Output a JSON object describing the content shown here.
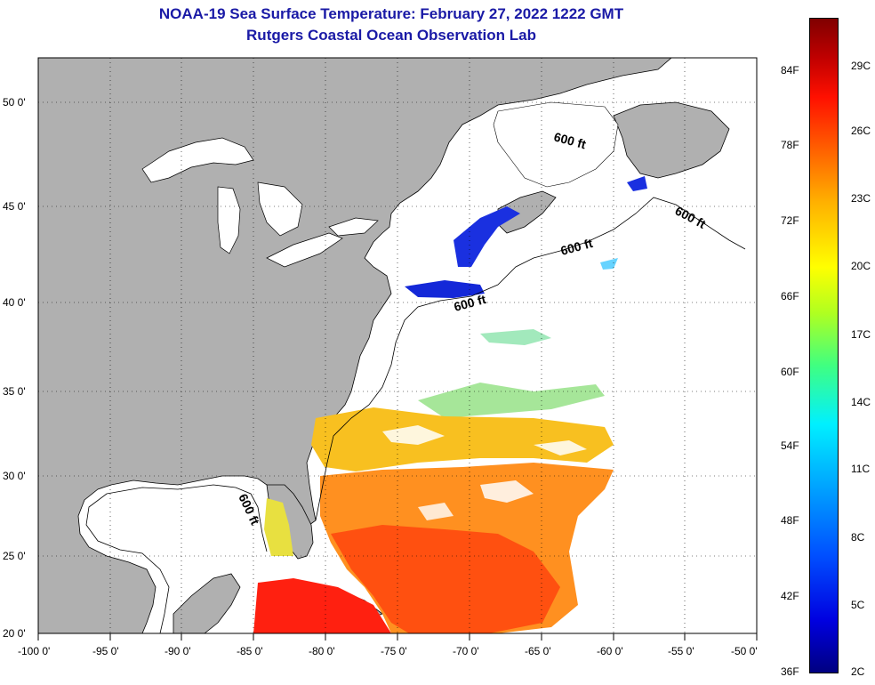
{
  "header": {
    "title": "NOAA-19 Sea Surface Temperature:  February 27, 2022 1222 GMT",
    "subtitle": "Rutgers Coastal Ocean Observation Lab"
  },
  "map": {
    "lon_labels": [
      "-100 0'",
      "-95 0'",
      "-90 0'",
      "-85 0'",
      "-80 0'",
      "-75 0'",
      "-70 0'",
      "-65 0'",
      "-60 0'",
      "-55 0'",
      "-50 0'"
    ],
    "lat_labels": [
      "50 0'",
      "45 0'",
      "40 0'",
      "35 0'",
      "30 0'",
      "25 0'",
      "20 0'"
    ],
    "depth_contour_labels": [
      "600 ft",
      "600 ft",
      "600 ft",
      "600 ft",
      "600 ft"
    ],
    "land_color": "#b0b0b0",
    "ocean_color": "#ffffff"
  },
  "colorbar": {
    "fahrenheit_labels": [
      "84F",
      "78F",
      "72F",
      "66F",
      "60F",
      "54F",
      "48F",
      "42F",
      "36F"
    ],
    "celsius_labels": [
      "29C",
      "26C",
      "23C",
      "20C",
      "17C",
      "14C",
      "11C",
      "8C",
      "5C",
      "2C"
    ],
    "colors": [
      "#000080",
      "#0000ff",
      "#00a0ff",
      "#00ffff",
      "#80ff40",
      "#ffff00",
      "#ff8000",
      "#ff1000",
      "#800000"
    ]
  }
}
